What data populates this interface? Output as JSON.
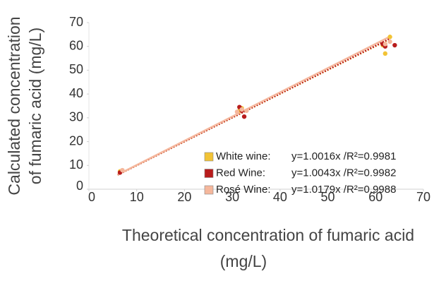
{
  "chart_data": {
    "type": "scatter",
    "y_label_lines": [
      "Calculated concentration",
      "of fumaric acid (mg/L)"
    ],
    "x_label_lines": [
      "Theoretical concentration of fumaric acid",
      "(mg/L)"
    ],
    "xlim": [
      0,
      70
    ],
    "xticks": [
      0,
      10,
      20,
      30,
      40,
      50,
      60,
      70
    ],
    "ylim": [
      0,
      70
    ],
    "yticks": [
      0,
      10,
      20,
      30,
      40,
      50,
      60,
      70
    ],
    "legend": "lower right",
    "series": [
      {
        "name": "White wine:",
        "color": "#f2c335",
        "slope": 1.0016,
        "trendline_label": "y=1.0016x /R²=0.9981",
        "x": [
          6.5,
          31.5,
          32,
          62,
          63,
          62,
          61.5
        ],
        "values": [
          7.5,
          33,
          34,
          57,
          64,
          61,
          60.5
        ]
      },
      {
        "name": "Red Wine:",
        "color": "#b81c1c",
        "slope": 1.0043,
        "trendline_label": "y=1.0043x /R²=0.9982",
        "x": [
          6.5,
          31.5,
          32.5,
          32,
          64,
          61.5,
          62
        ],
        "values": [
          7,
          34.5,
          30.5,
          33,
          60.5,
          61,
          60
        ]
      },
      {
        "name": "Rosé Wine:",
        "color": "#f5b79c",
        "slope": 1.0179,
        "trendline_label": "y=1.0179x /R²=0.9988",
        "x": [
          7,
          31,
          32,
          63,
          62,
          33
        ],
        "values": [
          8,
          32.5,
          33.5,
          62,
          61,
          33
        ]
      }
    ]
  }
}
